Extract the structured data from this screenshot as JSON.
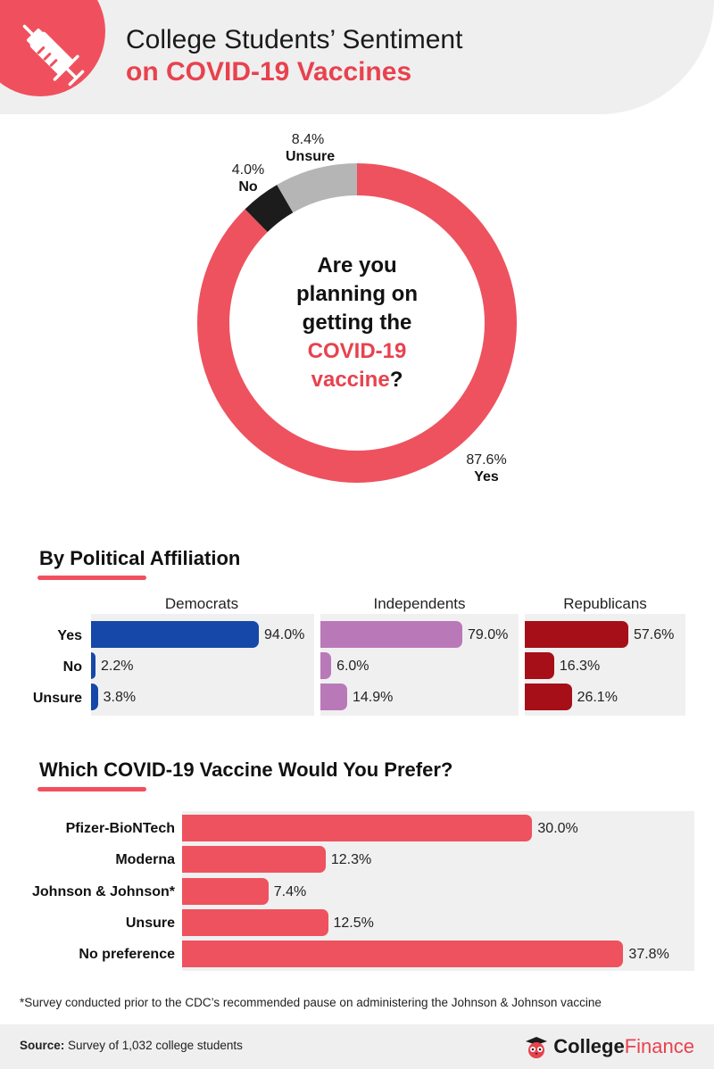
{
  "header": {
    "title_line1": "College Students’ Sentiment",
    "title_line2": "on COVID-19 Vaccines"
  },
  "donut": {
    "question_lines": [
      "Are you",
      "planning on",
      "getting the"
    ],
    "question_accent_line1": "COVID-19",
    "question_accent_line2": "vaccine",
    "question_mark": "?"
  },
  "colors": {
    "yes_main": "#ee525f",
    "no_main": "#1c1c1c",
    "unsure_main": "#b5b5b5",
    "democrats": "#1548a8",
    "independents": "#b979b8",
    "republicans": "#a60f17",
    "vaccine": "#ee525f",
    "accent": "#e8424e"
  },
  "section1": {
    "title": "By Political Affiliation"
  },
  "section2": {
    "title": "Which COVID-19 Vaccine Would You Prefer?"
  },
  "footnote": "*Survey conducted prior to the CDC’s recommended pause on administering the Johnson & Johnson vaccine",
  "footer": {
    "source_label": "Source:",
    "source_text": " Survey of 1,032 college students",
    "brand_a": "College",
    "brand_b": "Finance"
  },
  "chart_data": [
    {
      "type": "pie",
      "title": "Are you planning on getting the COVID-19 vaccine?",
      "categories": [
        "Yes",
        "No",
        "Unsure"
      ],
      "values": [
        87.6,
        4.0,
        8.4
      ],
      "labels": [
        "87.6%",
        "4.0%",
        "8.4%"
      ]
    },
    {
      "type": "bar",
      "title": "By Political Affiliation",
      "categories": [
        "Yes",
        "No",
        "Unsure"
      ],
      "series": [
        {
          "name": "Democrats",
          "values": [
            94.0,
            2.2,
            3.8
          ],
          "labels": [
            "94.0%",
            "2.2%",
            "3.8%"
          ]
        },
        {
          "name": "Independents",
          "values": [
            79.0,
            6.0,
            14.9
          ],
          "labels": [
            "79.0%",
            "6.0%",
            "14.9%"
          ]
        },
        {
          "name": "Republicans",
          "values": [
            57.6,
            16.3,
            26.1
          ],
          "labels": [
            "57.6%",
            "16.3%",
            "26.1%"
          ]
        }
      ],
      "xlim": [
        0,
        100
      ]
    },
    {
      "type": "bar",
      "title": "Which COVID-19 Vaccine Would You Prefer?",
      "categories": [
        "Pfizer-BioNTech",
        "Moderna",
        "Johnson & Johnson*",
        "Unsure",
        "No preference"
      ],
      "values": [
        30.0,
        12.3,
        7.4,
        12.5,
        37.8
      ],
      "labels": [
        "30.0%",
        "12.3%",
        "7.4%",
        "12.5%",
        "37.8%"
      ],
      "xlim": [
        0,
        46
      ]
    }
  ]
}
